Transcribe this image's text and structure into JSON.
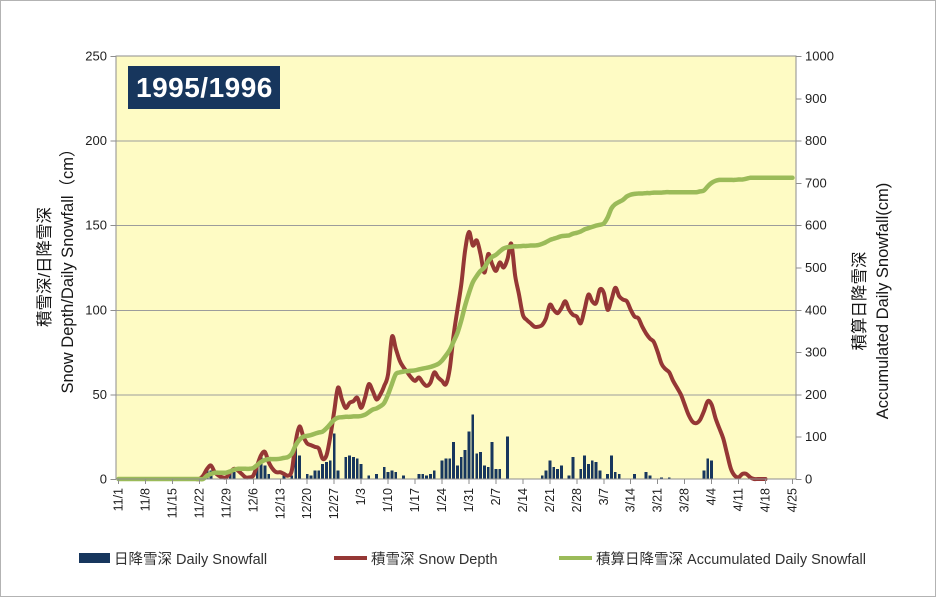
{
  "chart": {
    "title": "1995/1996",
    "axis_titles": {
      "left_line1": "積雪深/日降雪深",
      "left_line2": "Snow Depth/Daily Snowfall（cm）",
      "right_line1": "積算日降雪深",
      "right_line2": "Accumulated Daily Snowfall(cm)"
    },
    "colors": {
      "title_box_bg": "#17365D",
      "bar": "#17365D",
      "snow_depth_line": "#953735",
      "accumulated_line": "#9BBB59",
      "plot_background": "#FEFBC4",
      "gridline": "#9C9C9C",
      "plot_border": "#8E8E8E"
    }
  },
  "chart_data": {
    "type": "combo",
    "title": "1995/1996",
    "grid": true,
    "legend_position": "bottom",
    "x": {
      "tick_labels": [
        "11/1",
        "11/8",
        "11/15",
        "11/22",
        "11/29",
        "12/6",
        "12/13",
        "12/20",
        "12/27",
        "1/3",
        "1/10",
        "1/17",
        "1/24",
        "1/31",
        "2/7",
        "2/14",
        "2/21",
        "2/28",
        "3/7",
        "3/14",
        "3/21",
        "3/28",
        "4/4",
        "4/11",
        "4/18",
        "4/25"
      ],
      "points_per_tick": 7,
      "n_points": 176
    },
    "axes": {
      "left": {
        "label": "積雪深/日降雪深 Snow Depth/Daily Snowfall（cm）",
        "min": 0,
        "max": 250,
        "step": 50
      },
      "right": {
        "label": "積算日降雪深 Accumulated Daily Snowfall(cm)",
        "min": 0,
        "max": 1000,
        "step": 100
      }
    },
    "series": [
      {
        "name": "日降雪深 Daily Snowfall",
        "type": "bar",
        "axis": "left",
        "color": "#17365D",
        "values": [
          0,
          0,
          0,
          0,
          0,
          0,
          0,
          0,
          0,
          0,
          0,
          0,
          0,
          0,
          0,
          0,
          0,
          0,
          0,
          0,
          0,
          0,
          0,
          6,
          5,
          0,
          0,
          0,
          0,
          3,
          4,
          0,
          0,
          0,
          0,
          0,
          8,
          14,
          8,
          3,
          0,
          0,
          0,
          2,
          0,
          2,
          24,
          14,
          0,
          3,
          2,
          5,
          5,
          9,
          10,
          11,
          27,
          5,
          0,
          13,
          14,
          13,
          12,
          9,
          0,
          2,
          0,
          3,
          0,
          7,
          4,
          5,
          4,
          0,
          2,
          0,
          0,
          0,
          3,
          3,
          2,
          3,
          5,
          0,
          11,
          12,
          12,
          22,
          8,
          13,
          17,
          28,
          38,
          15,
          16,
          8,
          7,
          22,
          6,
          6,
          0,
          25,
          0,
          0,
          0,
          0,
          0,
          0,
          0,
          0,
          2,
          5,
          11,
          7,
          6,
          8,
          0,
          2,
          13,
          0,
          6,
          14,
          9,
          11,
          10,
          5,
          0,
          3,
          14,
          4,
          3,
          0,
          0,
          0,
          3,
          0,
          0,
          4,
          2,
          0,
          0,
          1,
          0,
          1,
          0,
          0,
          0,
          0,
          0,
          0,
          0,
          0,
          5,
          12,
          11,
          0,
          0,
          0,
          0,
          0,
          0,
          0,
          0,
          0,
          0,
          0,
          0,
          0,
          0,
          0,
          0,
          0,
          0,
          0,
          0,
          0
        ]
      },
      {
        "name": "積雪深 Snow Depth",
        "type": "line",
        "axis": "left",
        "color": "#953735",
        "values": [
          0,
          0,
          0,
          0,
          0,
          0,
          0,
          0,
          0,
          0,
          0,
          0,
          0,
          0,
          0,
          0,
          0,
          0,
          0,
          0,
          0,
          0,
          2,
          6,
          8,
          4,
          2,
          1,
          1,
          4,
          6,
          5,
          3,
          1,
          1,
          2,
          8,
          14,
          16,
          10,
          6,
          4,
          4,
          3,
          2,
          5,
          22,
          31,
          25,
          21,
          20,
          19,
          18,
          12,
          14,
          25,
          40,
          54,
          47,
          42,
          45,
          46,
          48,
          42,
          48,
          56,
          52,
          47,
          50,
          55,
          62,
          84,
          77,
          70,
          66,
          63,
          60,
          58,
          60,
          57,
          55,
          57,
          63,
          60,
          58,
          56,
          65,
          85,
          100,
          115,
          135,
          146,
          138,
          141,
          133,
          122,
          133,
          127,
          123,
          128,
          125,
          130,
          139,
          120,
          109,
          97,
          94,
          92,
          90,
          90,
          91,
          95,
          103,
          100,
          98,
          101,
          105,
          100,
          97,
          96,
          92,
          100,
          109,
          105,
          104,
          112,
          110,
          100,
          106,
          113,
          108,
          106,
          105,
          100,
          96,
          95,
          90,
          86,
          83,
          81,
          75,
          68,
          65,
          63,
          58,
          54,
          50,
          44,
          38,
          34,
          33,
          35,
          40,
          46,
          44,
          36,
          30,
          24,
          15,
          6,
          2,
          1,
          3,
          3,
          1,
          0,
          0,
          0,
          0,
          0,
          0,
          0,
          0,
          0,
          0,
          0
        ]
      },
      {
        "name": "積算日降雪深 Accumulated Daily Snowfall",
        "type": "line",
        "axis": "right",
        "color": "#9BBB59",
        "values": [
          0,
          0,
          0,
          0,
          0,
          0,
          0,
          0,
          0,
          0,
          0,
          0,
          0,
          0,
          0,
          0,
          0,
          0,
          0,
          0,
          0,
          0,
          0,
          8,
          12,
          15,
          15,
          15,
          15,
          18,
          22,
          24,
          24,
          24,
          24,
          26,
          33,
          40,
          45,
          47,
          47,
          47,
          48,
          50,
          52,
          60,
          80,
          93,
          100,
          102,
          104,
          107,
          110,
          112,
          120,
          130,
          140,
          145,
          146,
          147,
          147,
          148,
          148,
          149,
          152,
          158,
          164,
          167,
          172,
          180,
          200,
          225,
          248,
          252,
          254,
          255,
          256,
          257,
          259,
          261,
          263,
          265,
          268,
          272,
          280,
          292,
          305,
          325,
          345,
          375,
          410,
          440,
          465,
          480,
          492,
          500,
          515,
          525,
          530,
          538,
          545,
          548,
          549,
          550,
          550,
          551,
          551,
          552,
          552,
          553,
          556,
          560,
          565,
          568,
          571,
          574,
          575,
          576,
          580,
          582,
          585,
          590,
          593,
          596,
          599,
          601,
          604,
          618,
          640,
          650,
          655,
          660,
          668,
          672,
          674,
          675,
          675,
          676,
          676,
          677,
          677,
          677,
          678,
          678,
          678,
          678,
          678,
          678,
          678,
          678,
          678,
          680,
          682,
          692,
          700,
          705,
          707,
          707,
          707,
          707,
          707,
          708,
          708,
          710,
          712,
          712,
          712,
          712,
          712,
          712,
          712,
          712,
          712,
          712,
          712,
          712
        ]
      }
    ]
  }
}
